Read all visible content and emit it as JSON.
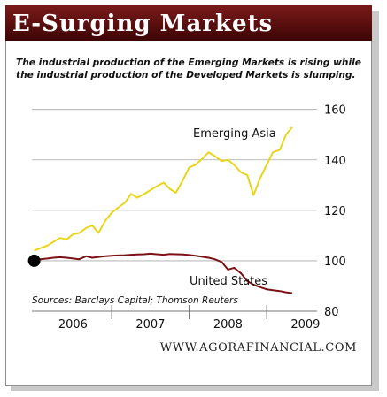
{
  "header": {
    "title": "E-Surging Markets",
    "subtitle_line1": "The industrial production of the Emerging Markets is rising while",
    "subtitle_line2": "the industrial production of the Developed Markets is slumping."
  },
  "footer": {
    "website": "WWW.AGORAFINANCIAL.COM"
  },
  "colors": {
    "title_bar": "#5a0d0d",
    "emerging_asia": "#e9d51c",
    "united_states": "#7b1216",
    "marker": "#000000"
  },
  "chart_data": {
    "type": "line",
    "title": "",
    "xlabel": "",
    "ylabel": "",
    "ylim": [
      80,
      162
    ],
    "yticks": [
      80,
      100,
      120,
      140,
      160
    ],
    "ytick_labels": [
      "80",
      "100",
      "120",
      "140",
      "160"
    ],
    "xlim": [
      2005.97,
      2009.65
    ],
    "year_labels": [
      {
        "label": "2006",
        "x": 2006.5
      },
      {
        "label": "2007",
        "x": 2007.5
      },
      {
        "label": "2008",
        "x": 2008.5
      },
      {
        "label": "2009",
        "x": 2009.5
      }
    ],
    "year_boundaries": [
      2007.0,
      2008.0,
      2009.0
    ],
    "source_note": "Sources: Barclays Capital; Thomson Reuters",
    "start_point": {
      "x": 2006.0,
      "y": 100
    },
    "series": [
      {
        "name": "Emerging Asia",
        "x": [
          2006.0,
          2006.08,
          2006.17,
          2006.25,
          2006.33,
          2006.42,
          2006.5,
          2006.58,
          2006.67,
          2006.75,
          2006.83,
          2006.92,
          2007.0,
          2007.08,
          2007.17,
          2007.25,
          2007.33,
          2007.42,
          2007.5,
          2007.58,
          2007.67,
          2007.75,
          2007.83,
          2007.92,
          2008.0,
          2008.08,
          2008.17,
          2008.25,
          2008.33,
          2008.42,
          2008.5,
          2008.58,
          2008.67,
          2008.75,
          2008.83,
          2008.92,
          2009.0,
          2009.08,
          2009.17,
          2009.25,
          2009.33
        ],
        "values": [
          104,
          105,
          106,
          107.5,
          109,
          108.5,
          110.5,
          111,
          113,
          114,
          111,
          116,
          119,
          121,
          123,
          126.5,
          125,
          126.5,
          128,
          129.5,
          131,
          128.5,
          127,
          132,
          137,
          138,
          140.5,
          143,
          141.5,
          139.5,
          140,
          138,
          135,
          134,
          126,
          133,
          138,
          143,
          144,
          150,
          153
        ]
      },
      {
        "name": "United States",
        "x": [
          2006.0,
          2006.08,
          2006.17,
          2006.25,
          2006.33,
          2006.42,
          2006.5,
          2006.58,
          2006.67,
          2006.75,
          2006.83,
          2006.92,
          2007.0,
          2007.08,
          2007.17,
          2007.25,
          2007.33,
          2007.42,
          2007.5,
          2007.58,
          2007.67,
          2007.75,
          2007.83,
          2007.92,
          2008.0,
          2008.08,
          2008.17,
          2008.25,
          2008.33,
          2008.42,
          2008.5,
          2008.58,
          2008.67,
          2008.75,
          2008.83,
          2008.92,
          2009.0,
          2009.08,
          2009.17,
          2009.25,
          2009.33
        ],
        "values": [
          100.3,
          100.6,
          100.9,
          101.2,
          101.4,
          101.2,
          100.9,
          100.6,
          101.8,
          101.2,
          101.5,
          101.8,
          102,
          102.1,
          102.2,
          102.4,
          102.5,
          102.6,
          102.8,
          102.6,
          102.4,
          102.7,
          102.6,
          102.5,
          102.3,
          102,
          101.6,
          101.2,
          100.6,
          99.5,
          96.5,
          97.2,
          95,
          92,
          90.5,
          89.5,
          88.7,
          88.3,
          88,
          87.5,
          87.2
        ]
      }
    ]
  }
}
